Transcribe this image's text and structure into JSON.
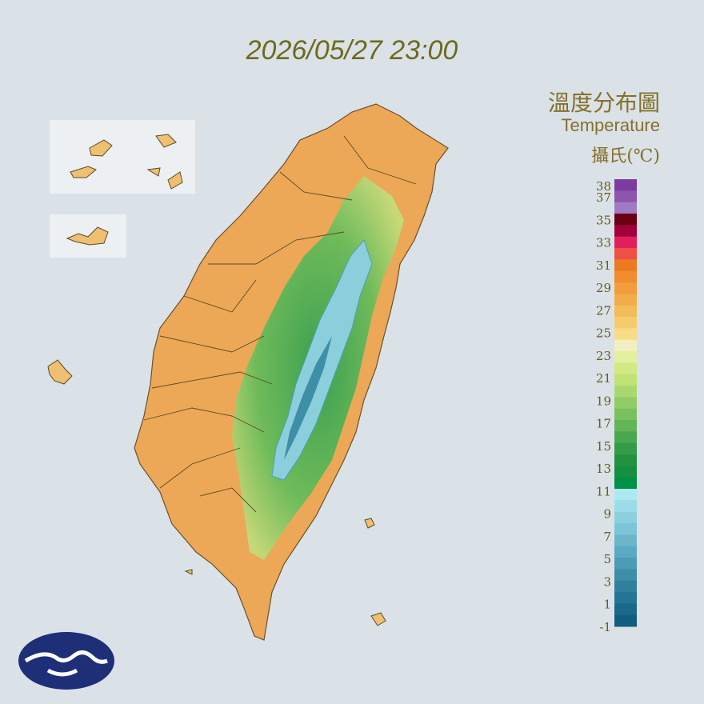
{
  "header": {
    "timestamp": "2026/05/27 23:00"
  },
  "legend": {
    "title": "溫度分布圖",
    "subtitle": "Temperature",
    "unit": "攝氏(℃)",
    "ticks": [
      38,
      37,
      35,
      33,
      31,
      29,
      27,
      25,
      23,
      21,
      19,
      17,
      15,
      13,
      11,
      9,
      7,
      5,
      3,
      1,
      -1
    ],
    "colors": [
      "#7a3c9e",
      "#8d55ae",
      "#a07ac2",
      "#6a0014",
      "#a0003c",
      "#e0205c",
      "#ee5048",
      "#ec7a22",
      "#f08c2e",
      "#f29c3c",
      "#f2ac4a",
      "#f3bc5a",
      "#f5cc6c",
      "#f7dc86",
      "#f2eec2",
      "#e2f0a0",
      "#d2ea84",
      "#c0e274",
      "#aad86e",
      "#92cc66",
      "#7ac05e",
      "#62b458",
      "#4aa850",
      "#349c48",
      "#22923f",
      "#14903f",
      "#009048",
      "#aee8f0",
      "#9cdce8",
      "#8cd0e0",
      "#7cc4d8",
      "#6cb6cc",
      "#5caac2",
      "#4c9cb6",
      "#3e8eaa",
      "#30809e",
      "#247494",
      "#1a688a",
      "#125e80"
    ]
  }
}
